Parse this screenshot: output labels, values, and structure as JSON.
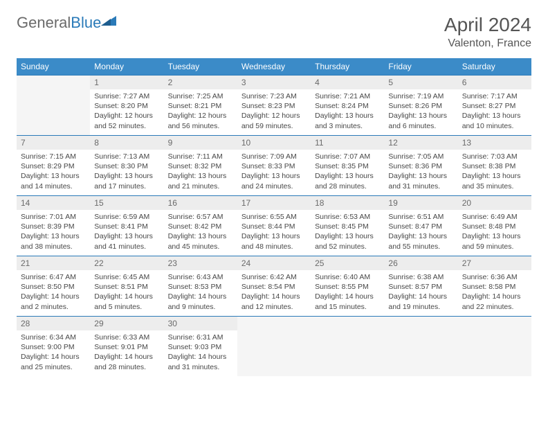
{
  "brand": {
    "part1": "General",
    "part2": "Blue"
  },
  "title": "April 2024",
  "location": "Valenton, France",
  "colors": {
    "header_bg": "#3b8bc8",
    "header_text": "#ffffff",
    "border": "#2a7ab8",
    "daynum_bg": "#ededed",
    "daynum_text": "#6a6a6a",
    "body_text": "#474747",
    "logo_gray": "#6a6a6a",
    "logo_blue": "#2a7ab8"
  },
  "day_headers": [
    "Sunday",
    "Monday",
    "Tuesday",
    "Wednesday",
    "Thursday",
    "Friday",
    "Saturday"
  ],
  "weeks": [
    [
      null,
      {
        "n": "1",
        "sr": "7:27 AM",
        "ss": "8:20 PM",
        "dl": "12 hours and 52 minutes."
      },
      {
        "n": "2",
        "sr": "7:25 AM",
        "ss": "8:21 PM",
        "dl": "12 hours and 56 minutes."
      },
      {
        "n": "3",
        "sr": "7:23 AM",
        "ss": "8:23 PM",
        "dl": "12 hours and 59 minutes."
      },
      {
        "n": "4",
        "sr": "7:21 AM",
        "ss": "8:24 PM",
        "dl": "13 hours and 3 minutes."
      },
      {
        "n": "5",
        "sr": "7:19 AM",
        "ss": "8:26 PM",
        "dl": "13 hours and 6 minutes."
      },
      {
        "n": "6",
        "sr": "7:17 AM",
        "ss": "8:27 PM",
        "dl": "13 hours and 10 minutes."
      }
    ],
    [
      {
        "n": "7",
        "sr": "7:15 AM",
        "ss": "8:29 PM",
        "dl": "13 hours and 14 minutes."
      },
      {
        "n": "8",
        "sr": "7:13 AM",
        "ss": "8:30 PM",
        "dl": "13 hours and 17 minutes."
      },
      {
        "n": "9",
        "sr": "7:11 AM",
        "ss": "8:32 PM",
        "dl": "13 hours and 21 minutes."
      },
      {
        "n": "10",
        "sr": "7:09 AM",
        "ss": "8:33 PM",
        "dl": "13 hours and 24 minutes."
      },
      {
        "n": "11",
        "sr": "7:07 AM",
        "ss": "8:35 PM",
        "dl": "13 hours and 28 minutes."
      },
      {
        "n": "12",
        "sr": "7:05 AM",
        "ss": "8:36 PM",
        "dl": "13 hours and 31 minutes."
      },
      {
        "n": "13",
        "sr": "7:03 AM",
        "ss": "8:38 PM",
        "dl": "13 hours and 35 minutes."
      }
    ],
    [
      {
        "n": "14",
        "sr": "7:01 AM",
        "ss": "8:39 PM",
        "dl": "13 hours and 38 minutes."
      },
      {
        "n": "15",
        "sr": "6:59 AM",
        "ss": "8:41 PM",
        "dl": "13 hours and 41 minutes."
      },
      {
        "n": "16",
        "sr": "6:57 AM",
        "ss": "8:42 PM",
        "dl": "13 hours and 45 minutes."
      },
      {
        "n": "17",
        "sr": "6:55 AM",
        "ss": "8:44 PM",
        "dl": "13 hours and 48 minutes."
      },
      {
        "n": "18",
        "sr": "6:53 AM",
        "ss": "8:45 PM",
        "dl": "13 hours and 52 minutes."
      },
      {
        "n": "19",
        "sr": "6:51 AM",
        "ss": "8:47 PM",
        "dl": "13 hours and 55 minutes."
      },
      {
        "n": "20",
        "sr": "6:49 AM",
        "ss": "8:48 PM",
        "dl": "13 hours and 59 minutes."
      }
    ],
    [
      {
        "n": "21",
        "sr": "6:47 AM",
        "ss": "8:50 PM",
        "dl": "14 hours and 2 minutes."
      },
      {
        "n": "22",
        "sr": "6:45 AM",
        "ss": "8:51 PM",
        "dl": "14 hours and 5 minutes."
      },
      {
        "n": "23",
        "sr": "6:43 AM",
        "ss": "8:53 PM",
        "dl": "14 hours and 9 minutes."
      },
      {
        "n": "24",
        "sr": "6:42 AM",
        "ss": "8:54 PM",
        "dl": "14 hours and 12 minutes."
      },
      {
        "n": "25",
        "sr": "6:40 AM",
        "ss": "8:55 PM",
        "dl": "14 hours and 15 minutes."
      },
      {
        "n": "26",
        "sr": "6:38 AM",
        "ss": "8:57 PM",
        "dl": "14 hours and 19 minutes."
      },
      {
        "n": "27",
        "sr": "6:36 AM",
        "ss": "8:58 PM",
        "dl": "14 hours and 22 minutes."
      }
    ],
    [
      {
        "n": "28",
        "sr": "6:34 AM",
        "ss": "9:00 PM",
        "dl": "14 hours and 25 minutes."
      },
      {
        "n": "29",
        "sr": "6:33 AM",
        "ss": "9:01 PM",
        "dl": "14 hours and 28 minutes."
      },
      {
        "n": "30",
        "sr": "6:31 AM",
        "ss": "9:03 PM",
        "dl": "14 hours and 31 minutes."
      },
      null,
      null,
      null,
      null
    ]
  ],
  "labels": {
    "sunrise": "Sunrise: ",
    "sunset": "Sunset: ",
    "daylight": "Daylight: "
  }
}
